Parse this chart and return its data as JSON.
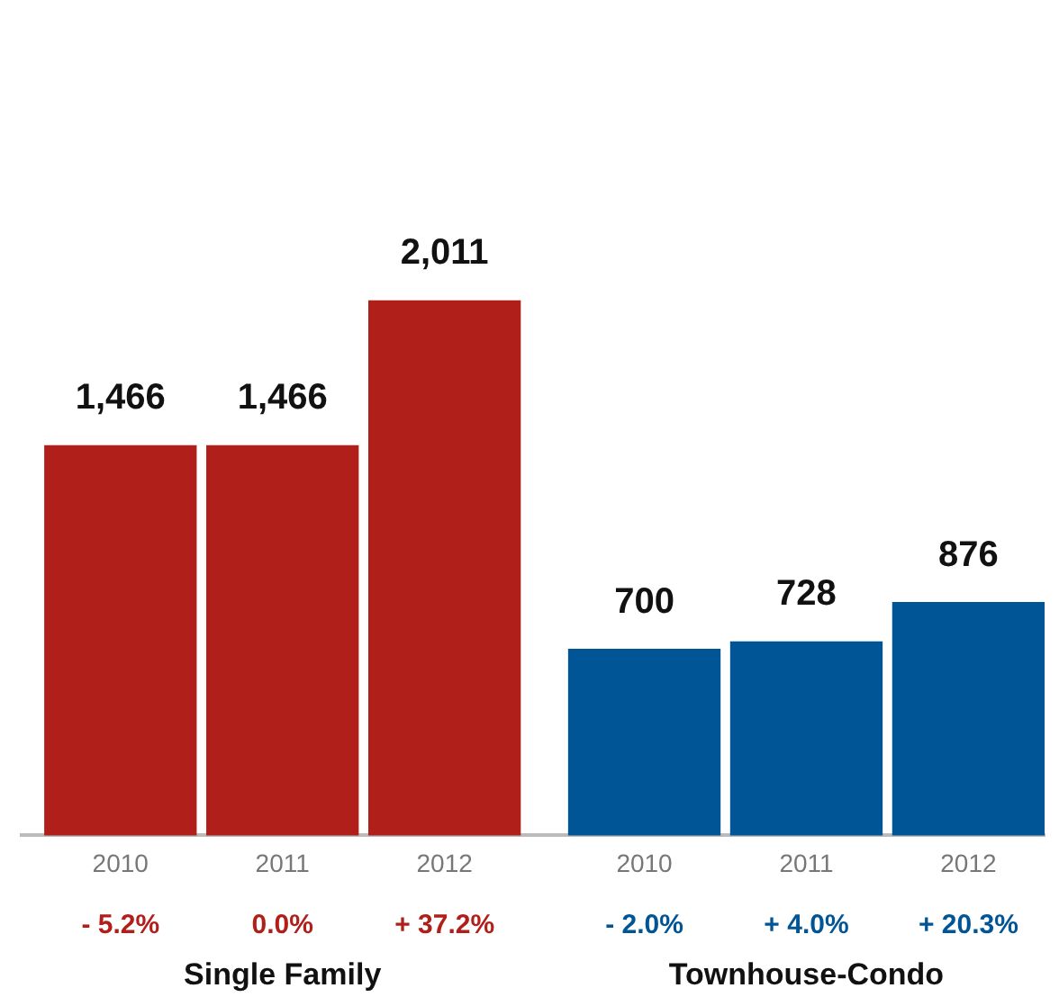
{
  "chart_data": {
    "type": "bar",
    "categories": [
      "2010",
      "2011",
      "2012",
      "2010",
      "2011",
      "2012"
    ],
    "values": [
      1466,
      1466,
      2011,
      700,
      728,
      876
    ],
    "colors": [
      "#b01f1a",
      "#b01f1a",
      "#b01f1a",
      "#005596",
      "#005596",
      "#005596"
    ],
    "value_labels": [
      "1,466",
      "1,466",
      "2,011",
      "700",
      "728",
      "876"
    ],
    "grid": false,
    "legend": false,
    "annotations": [
      "- 5.2%",
      "0.0%",
      "+ 37.2%",
      "- 2.0%",
      "+ 4.0%",
      "+ 20.3%",
      "Single Family",
      "Townhouse-Condo"
    ]
  }
}
